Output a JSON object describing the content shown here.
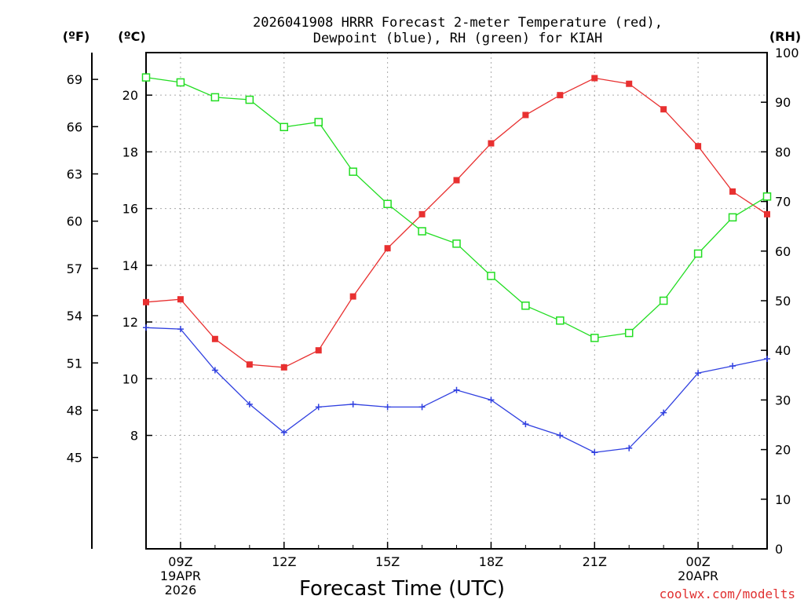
{
  "chart_data": {
    "type": "line",
    "title_line1": "2026041908 HRRR Forecast 2-meter Temperature (red),",
    "title_line2": "Dewpoint (blue), RH (green) for KIAH",
    "xlabel": "Forecast Time (UTC)",
    "credit": "coolwx.com/modelts",
    "units": {
      "fahrenheit": "(ºF)",
      "celsius": "(ºC)",
      "rh": "(RH)"
    },
    "x_hours": [
      8,
      9,
      10,
      11,
      12,
      13,
      14,
      15,
      16,
      17,
      18,
      19,
      20,
      21,
      22,
      23,
      24,
      25,
      26
    ],
    "x_ticks": [
      {
        "hour": 9,
        "lines": [
          "09Z",
          "19APR",
          "2026"
        ]
      },
      {
        "hour": 12,
        "lines": [
          "12Z"
        ]
      },
      {
        "hour": 15,
        "lines": [
          "15Z"
        ]
      },
      {
        "hour": 18,
        "lines": [
          "18Z"
        ]
      },
      {
        "hour": 21,
        "lines": [
          "21Z"
        ]
      },
      {
        "hour": 24,
        "lines": [
          "00Z",
          "20APR"
        ]
      }
    ],
    "xlim": [
      8,
      26
    ],
    "celsius_axis": {
      "ylim": [
        4.0,
        21.5
      ],
      "ticks": [
        "8",
        "10",
        "12",
        "14",
        "16",
        "18",
        "20"
      ],
      "tick_values": [
        8,
        10,
        12,
        14,
        16,
        18,
        20
      ]
    },
    "fahrenheit_axis": {
      "ticks": [
        "45",
        "48",
        "51",
        "54",
        "57",
        "60",
        "63",
        "66",
        "69"
      ],
      "tick_values": [
        45,
        48,
        51,
        54,
        57,
        60,
        63,
        66,
        69
      ]
    },
    "rh_axis": {
      "ylim": [
        0,
        100
      ],
      "ticks": [
        "0",
        "10",
        "20",
        "30",
        "40",
        "50",
        "60",
        "70",
        "80",
        "90",
        "100"
      ],
      "tick_values": [
        0,
        10,
        20,
        30,
        40,
        50,
        60,
        70,
        80,
        90,
        100
      ]
    },
    "series": [
      {
        "name": "Temperature",
        "color": "#e83030",
        "marker": "filled-square",
        "axis": "celsius",
        "values": [
          12.7,
          12.8,
          11.4,
          10.5,
          10.4,
          11.0,
          12.9,
          14.6,
          15.8,
          17.0,
          18.3,
          19.3,
          20.0,
          20.6,
          20.4,
          19.5,
          18.2,
          16.6,
          15.8
        ]
      },
      {
        "name": "Dewpoint",
        "color": "#3040e0",
        "marker": "plus",
        "axis": "celsius",
        "values": [
          11.8,
          11.75,
          10.3,
          9.1,
          8.1,
          9.0,
          9.1,
          9.0,
          9.0,
          9.6,
          9.25,
          8.4,
          8.0,
          7.4,
          7.55,
          8.8,
          10.2,
          10.45,
          10.7
        ]
      },
      {
        "name": "RH",
        "color": "#22dd22",
        "marker": "open-square",
        "axis": "rh",
        "values": [
          95,
          94,
          91,
          90.5,
          85,
          86,
          76,
          69.5,
          64,
          61.5,
          55,
          49,
          46,
          42.5,
          43.5,
          50,
          59.5,
          66.8,
          71
        ]
      }
    ]
  }
}
